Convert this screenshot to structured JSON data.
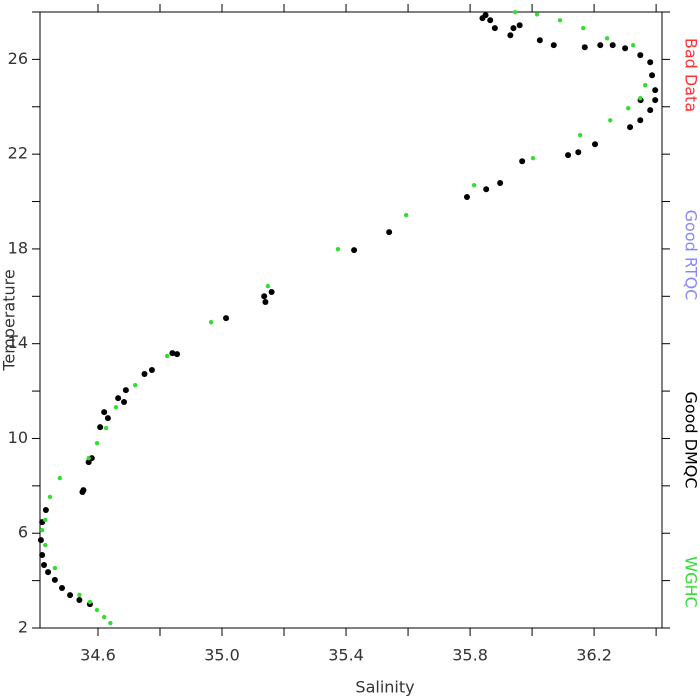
{
  "chart_data": {
    "type": "scatter",
    "x_label": "Salinity",
    "y_label": "Temperature",
    "xlim": [
      34.413,
      36.419
    ],
    "ylim": [
      2,
      28
    ],
    "xticks": [
      34.6,
      {
        "value": 35.0,
        "label": "35.0"
      },
      35.4,
      35.8,
      36.2
    ],
    "xminor_ticks": [
      34.8,
      35.2,
      35.6,
      36.0,
      36.4
    ],
    "yticks": [
      2,
      6,
      10,
      14,
      18,
      22,
      26
    ],
    "yminor_ticks": [
      4,
      8,
      12,
      16,
      20,
      24,
      28
    ],
    "series": [
      {
        "name": "Bad Data",
        "color": "#ff3333",
        "x": [],
        "y": []
      },
      {
        "name": "Good RTQC",
        "color": "#8888ff",
        "x": [],
        "y": []
      },
      {
        "name": "Good DMQC",
        "color": "#000000",
        "x": [
          34.42,
          34.416,
          34.42,
          34.426,
          34.439,
          34.461,
          34.484,
          34.51,
          34.54,
          34.574,
          34.432,
          34.55,
          34.553,
          34.57,
          34.58,
          34.607,
          34.62,
          34.632,
          34.665,
          34.684,
          34.69,
          34.75,
          34.774,
          34.84,
          34.855,
          35.013,
          35.136,
          35.14,
          35.16,
          35.426,
          35.539,
          35.79,
          35.852,
          35.897,
          35.968,
          36.116,
          36.149,
          36.203,
          36.316,
          36.349,
          36.381,
          36.397,
          36.397,
          36.387,
          36.381,
          36.349,
          36.3,
          36.22,
          36.17,
          36.07,
          36.025,
          35.93,
          35.94,
          35.88,
          35.84,
          35.85,
          35.865,
          35.96,
          36.35,
          36.26
        ],
        "y": [
          6.47,
          5.71,
          5.08,
          4.66,
          4.36,
          4.03,
          3.69,
          3.39,
          3.18,
          3.01,
          6.98,
          7.74,
          7.82,
          9.0,
          9.17,
          10.48,
          11.11,
          10.86,
          11.7,
          11.54,
          12.04,
          12.72,
          12.89,
          13.6,
          13.56,
          15.08,
          16.0,
          15.76,
          16.18,
          17.95,
          18.71,
          20.19,
          20.52,
          20.78,
          21.7,
          21.96,
          22.08,
          22.42,
          23.14,
          23.43,
          23.86,
          24.28,
          24.7,
          25.33,
          25.88,
          26.18,
          26.47,
          26.6,
          26.51,
          26.6,
          26.81,
          27.02,
          27.32,
          27.32,
          27.74,
          27.87,
          27.65,
          27.44,
          24.28,
          26.6
        ]
      },
      {
        "name": "WGHC",
        "color": "#33dd33",
        "x": [
          34.64,
          34.62,
          34.597,
          34.574,
          34.54,
          34.461,
          34.43,
          34.42,
          34.43,
          34.445,
          34.477,
          34.57,
          34.597,
          34.626,
          34.658,
          34.72,
          34.823,
          34.965,
          35.148,
          35.374,
          35.594,
          35.813,
          36.003,
          36.155,
          36.252,
          36.31,
          36.349,
          36.365,
          36.326,
          36.242,
          36.165,
          36.09,
          36.016,
          35.945
        ],
        "y": [
          2.21,
          2.46,
          2.76,
          3.1,
          3.4,
          4.53,
          5.5,
          6.13,
          6.56,
          7.53,
          8.33,
          9.17,
          9.8,
          10.44,
          11.32,
          12.25,
          13.48,
          14.91,
          16.43,
          17.99,
          19.43,
          20.69,
          21.83,
          22.8,
          23.43,
          23.94,
          24.36,
          24.91,
          26.6,
          26.89,
          27.32,
          27.65,
          27.9,
          27.99
        ]
      }
    ]
  }
}
